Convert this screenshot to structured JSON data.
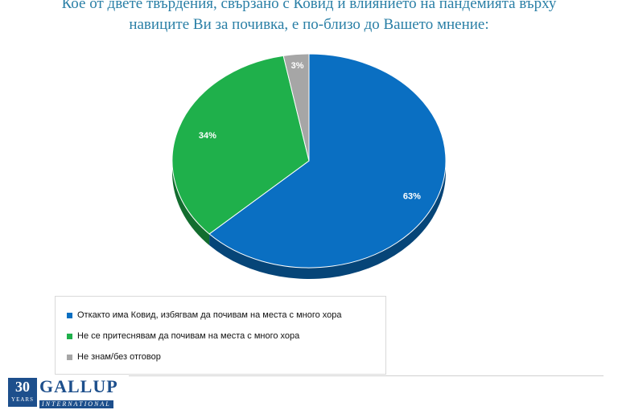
{
  "title_lines": [
    "Кое от двете твърдения, свързано с Ковид и влиянието на пандемията върху",
    "навиците Ви за почивка, е по-близо до Вашето мнение:"
  ],
  "chart_data": {
    "type": "pie",
    "title": "Кое от двете твърдения, свързано с Ковид и влиянието на пандемията върху навиците Ви за почивка, е по-близо до Вашето мнение:",
    "series": [
      {
        "name": "Откакто има Ковид, избягвам да почивам на места с много хора",
        "value": 63,
        "label": "63%",
        "color": "#0a6fc2"
      },
      {
        "name": "Не се притеснявам да почивам на места с много хора",
        "value": 34,
        "label": "34%",
        "color": "#1fb04b"
      },
      {
        "name": "Не знам/без отговор",
        "value": 3,
        "label": "3%",
        "color": "#a6a6a6"
      }
    ],
    "legend_position": "bottom-left"
  },
  "logo": {
    "years": "30",
    "years_label": "YEARS",
    "brand": "GALLUP",
    "brand_sub": "INTERNATIONAL"
  },
  "colors": {
    "title": "#2a7fa6",
    "brand": "#1d4f8c"
  }
}
